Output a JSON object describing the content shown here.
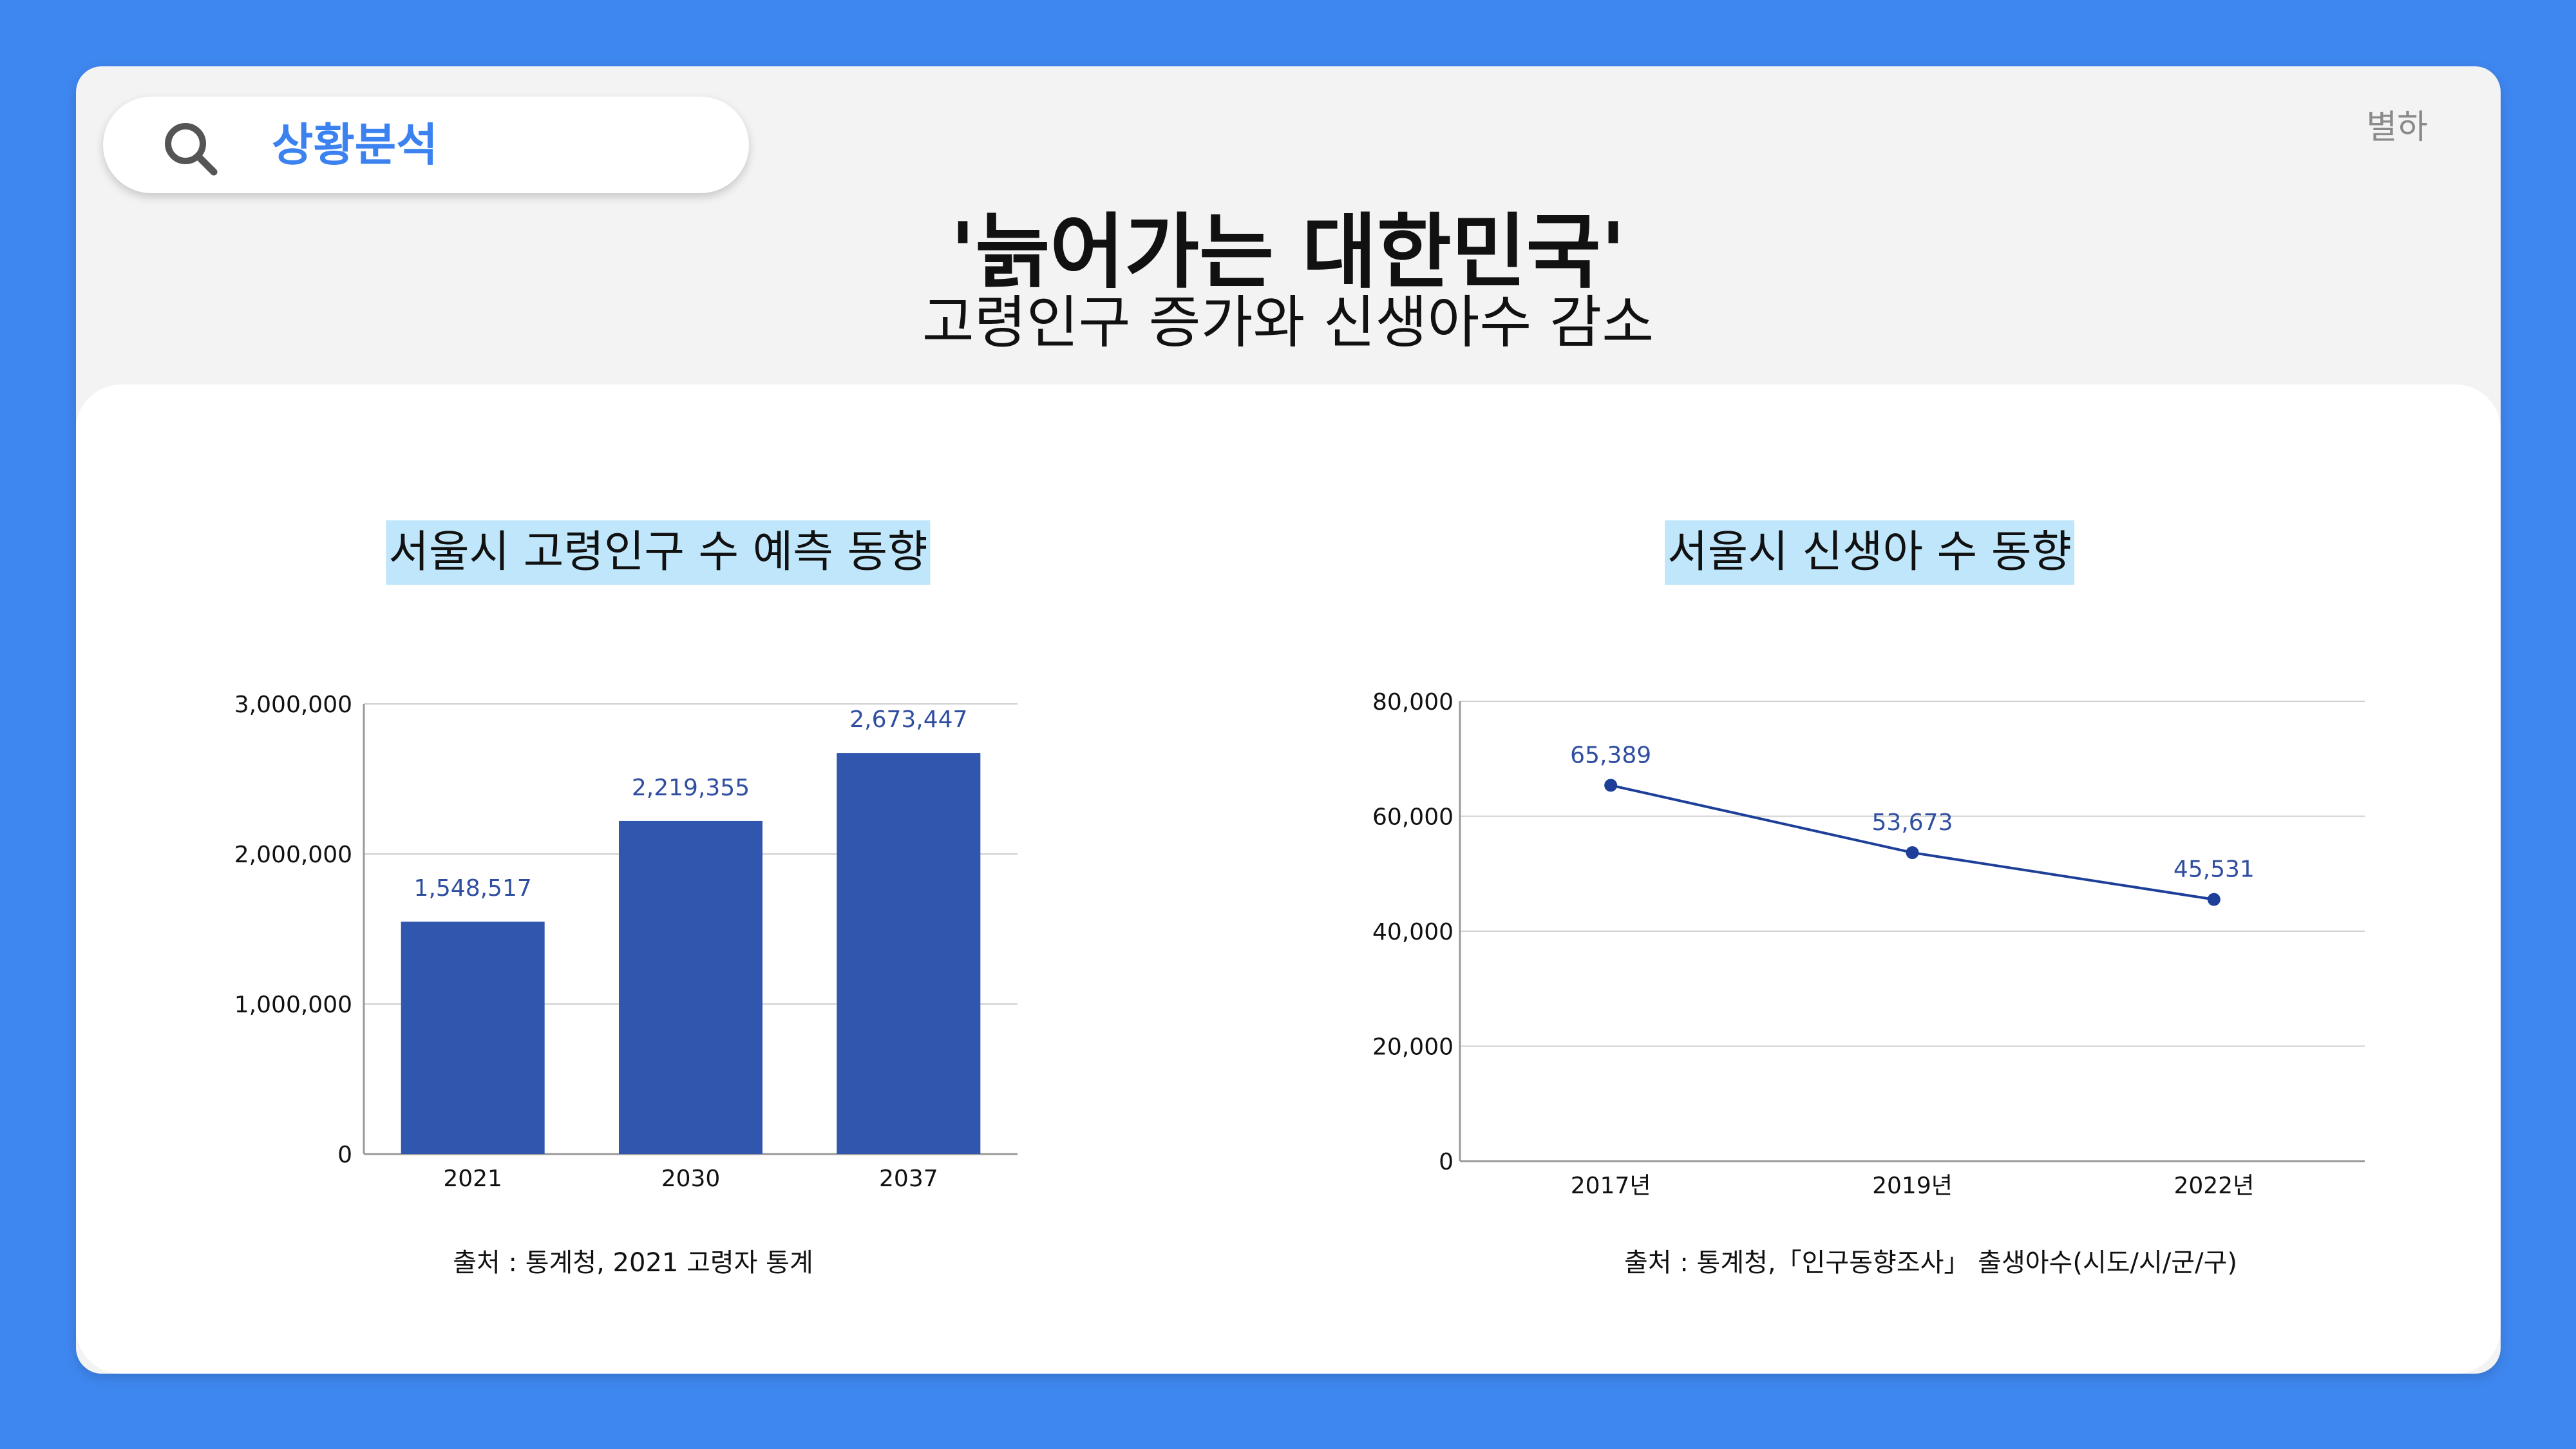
{
  "header": {
    "search_label": "상황분석",
    "corner_label": "별하",
    "title": "'늙어가는 대한민국'",
    "subtitle": "고령인구 증가와 신생아수 감소"
  },
  "colors": {
    "background": "#3f87f0",
    "accent": "#3b82f0",
    "bar": "#3156ad",
    "line": "#1e3f99",
    "title_highlight": "#bfe6fb"
  },
  "chart_data": [
    {
      "type": "bar",
      "title": "서울시 고령인구 수 예측 동향",
      "categories": [
        "2021",
        "2030",
        "2037"
      ],
      "values": [
        1548517,
        2219355,
        2673447
      ],
      "value_labels": [
        "1,548,517",
        "2,219,355",
        "2,673,447"
      ],
      "yticks": [
        0,
        1000000,
        2000000,
        3000000
      ],
      "ytick_labels": [
        "0",
        "1,000,000",
        "2,000,000",
        "3,000,000"
      ],
      "ylim": [
        0,
        3000000
      ],
      "xlabel": "",
      "ylabel": "",
      "grid": true,
      "source": "출처 : 통계청, 2021 고령자 통계"
    },
    {
      "type": "line",
      "title": "서울시 신생아 수 동향",
      "categories": [
        "2017년",
        "2019년",
        "2022년"
      ],
      "values": [
        65389,
        53673,
        45531
      ],
      "value_labels": [
        "65,389",
        "53,673",
        "45,531"
      ],
      "yticks": [
        0,
        20000,
        40000,
        60000,
        80000
      ],
      "ytick_labels": [
        "0",
        "20,000",
        "40,000",
        "60,000",
        "80,000"
      ],
      "ylim": [
        0,
        80000
      ],
      "xlabel": "",
      "ylabel": "",
      "grid": true,
      "source": "출처 : 통계청,「인구동향조사」 출생아수(시도/시/군/구)"
    }
  ]
}
